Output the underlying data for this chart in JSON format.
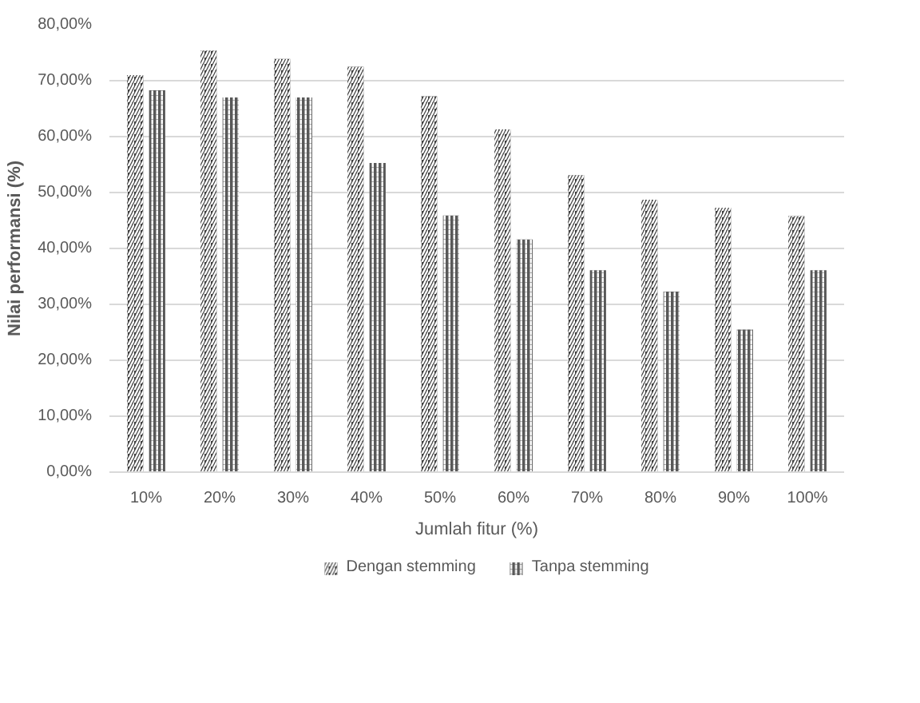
{
  "chart_data": {
    "type": "bar",
    "xlabel": "Jumlah fitur (%)",
    "ylabel": "Nilai performansi (%)",
    "categories": [
      "10%",
      "20%",
      "30%",
      "40%",
      "50%",
      "60%",
      "70%",
      "80%",
      "90%",
      "100%"
    ],
    "series": [
      {
        "name": "Dengan stemming",
        "color": "#404040",
        "values": [
          71.0,
          75.4,
          73.9,
          72.5,
          67.2,
          61.3,
          53.1,
          48.7,
          47.3,
          45.8
        ]
      },
      {
        "name": "Tanpa stemming",
        "color": "#595959",
        "values": [
          68.3,
          67.0,
          67.0,
          55.3,
          45.9,
          41.6,
          36.1,
          32.3,
          25.5,
          36.1
        ]
      }
    ],
    "ylim": [
      0,
      80
    ],
    "yticks": [
      {
        "value": 0,
        "label": "0,00%"
      },
      {
        "value": 10,
        "label": "10,00%"
      },
      {
        "value": 20,
        "label": "20,00%"
      },
      {
        "value": 30,
        "label": "30,00%"
      },
      {
        "value": 40,
        "label": "40,00%"
      },
      {
        "value": 50,
        "label": "50,00%"
      },
      {
        "value": 60,
        "label": "60,00%"
      },
      {
        "value": 70,
        "label": "70,00%"
      },
      {
        "value": 80,
        "label": "80,00%"
      }
    ],
    "grid": "y",
    "legend": "bottom"
  }
}
